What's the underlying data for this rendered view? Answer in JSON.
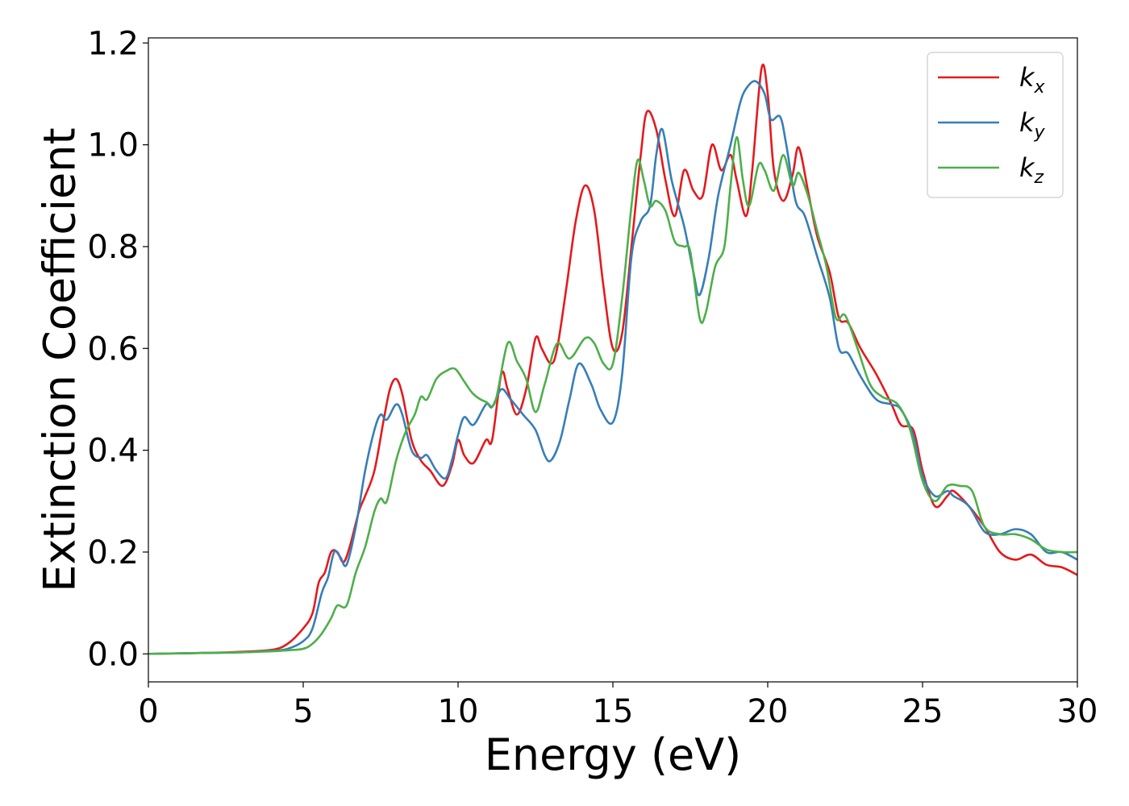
{
  "chart_data": {
    "type": "line",
    "xlabel": "Energy (eV)",
    "ylabel": "Extinction Coefficient",
    "xlim": [
      0,
      30
    ],
    "ylim": [
      -0.055,
      1.21
    ],
    "xticks": [
      0,
      5,
      10,
      15,
      20,
      25,
      30
    ],
    "xtick_labels": [
      "0",
      "5",
      "10",
      "15",
      "20",
      "25",
      "30"
    ],
    "yticks": [
      0.0,
      0.2,
      0.4,
      0.6,
      0.8,
      1.0,
      1.2
    ],
    "ytick_labels": [
      "0.0",
      "0.2",
      "0.4",
      "0.6",
      "0.8",
      "1.0",
      "1.2"
    ],
    "grid": false,
    "legend_position": "top-right",
    "series": [
      {
        "name": "k_x",
        "label_main": "k",
        "label_sub": "x",
        "color": "#e41a1c",
        "points": [
          [
            0,
            0
          ],
          [
            2,
            0.002
          ],
          [
            3,
            0.004
          ],
          [
            4,
            0.008
          ],
          [
            4.5,
            0.02
          ],
          [
            5,
            0.05
          ],
          [
            5.3,
            0.08
          ],
          [
            5.5,
            0.14
          ],
          [
            5.7,
            0.16
          ],
          [
            5.9,
            0.2
          ],
          [
            6.1,
            0.2
          ],
          [
            6.3,
            0.18
          ],
          [
            6.5,
            0.21
          ],
          [
            6.8,
            0.28
          ],
          [
            7,
            0.31
          ],
          [
            7.3,
            0.36
          ],
          [
            7.6,
            0.46
          ],
          [
            7.8,
            0.52
          ],
          [
            8,
            0.54
          ],
          [
            8.2,
            0.51
          ],
          [
            8.5,
            0.42
          ],
          [
            8.8,
            0.38
          ],
          [
            9.1,
            0.36
          ],
          [
            9.5,
            0.33
          ],
          [
            9.8,
            0.37
          ],
          [
            10,
            0.42
          ],
          [
            10.2,
            0.39
          ],
          [
            10.5,
            0.375
          ],
          [
            10.9,
            0.42
          ],
          [
            11.1,
            0.42
          ],
          [
            11.4,
            0.55
          ],
          [
            11.6,
            0.52
          ],
          [
            11.9,
            0.47
          ],
          [
            12.2,
            0.52
          ],
          [
            12.5,
            0.62
          ],
          [
            12.7,
            0.6
          ],
          [
            13,
            0.57
          ],
          [
            13.2,
            0.6
          ],
          [
            13.5,
            0.72
          ],
          [
            13.8,
            0.85
          ],
          [
            14.1,
            0.92
          ],
          [
            14.4,
            0.87
          ],
          [
            14.7,
            0.72
          ],
          [
            15,
            0.6
          ],
          [
            15.3,
            0.63
          ],
          [
            15.6,
            0.8
          ],
          [
            15.9,
            0.98
          ],
          [
            16.1,
            1.065
          ],
          [
            16.4,
            1.03
          ],
          [
            16.7,
            0.93
          ],
          [
            17,
            0.86
          ],
          [
            17.3,
            0.95
          ],
          [
            17.6,
            0.91
          ],
          [
            17.9,
            0.9
          ],
          [
            18.2,
            1.0
          ],
          [
            18.5,
            0.95
          ],
          [
            18.8,
            0.98
          ],
          [
            19.0,
            0.93
          ],
          [
            19.3,
            0.86
          ],
          [
            19.5,
            0.95
          ],
          [
            19.8,
            1.15
          ],
          [
            20.0,
            1.1
          ],
          [
            20.2,
            0.95
          ],
          [
            20.5,
            0.89
          ],
          [
            20.8,
            0.94
          ],
          [
            21.0,
            0.995
          ],
          [
            21.3,
            0.91
          ],
          [
            21.6,
            0.82
          ],
          [
            22.0,
            0.75
          ],
          [
            22.3,
            0.66
          ],
          [
            22.6,
            0.65
          ],
          [
            23,
            0.6
          ],
          [
            23.5,
            0.55
          ],
          [
            24,
            0.49
          ],
          [
            24.3,
            0.45
          ],
          [
            24.7,
            0.44
          ],
          [
            25,
            0.36
          ],
          [
            25.4,
            0.29
          ],
          [
            25.8,
            0.31
          ],
          [
            26,
            0.32
          ],
          [
            26.5,
            0.29
          ],
          [
            27,
            0.25
          ],
          [
            27.5,
            0.2
          ],
          [
            28,
            0.185
          ],
          [
            28.5,
            0.195
          ],
          [
            29,
            0.175
          ],
          [
            29.5,
            0.17
          ],
          [
            30,
            0.155
          ]
        ]
      },
      {
        "name": "k_y",
        "label_main": "k",
        "label_sub": "y",
        "color": "#377eb8",
        "points": [
          [
            0,
            0
          ],
          [
            2,
            0.002
          ],
          [
            3,
            0.003
          ],
          [
            4,
            0.006
          ],
          [
            4.5,
            0.01
          ],
          [
            5,
            0.025
          ],
          [
            5.3,
            0.05
          ],
          [
            5.6,
            0.12
          ],
          [
            5.8,
            0.15
          ],
          [
            6,
            0.2
          ],
          [
            6.2,
            0.19
          ],
          [
            6.4,
            0.175
          ],
          [
            6.7,
            0.25
          ],
          [
            7,
            0.36
          ],
          [
            7.3,
            0.44
          ],
          [
            7.5,
            0.47
          ],
          [
            7.7,
            0.46
          ],
          [
            8,
            0.49
          ],
          [
            8.2,
            0.47
          ],
          [
            8.5,
            0.4
          ],
          [
            8.8,
            0.385
          ],
          [
            9,
            0.39
          ],
          [
            9.3,
            0.36
          ],
          [
            9.6,
            0.345
          ],
          [
            9.8,
            0.38
          ],
          [
            10,
            0.43
          ],
          [
            10.2,
            0.465
          ],
          [
            10.5,
            0.45
          ],
          [
            10.9,
            0.49
          ],
          [
            11.1,
            0.485
          ],
          [
            11.4,
            0.52
          ],
          [
            11.7,
            0.5
          ],
          [
            12.1,
            0.47
          ],
          [
            12.5,
            0.44
          ],
          [
            12.8,
            0.39
          ],
          [
            13,
            0.38
          ],
          [
            13.3,
            0.42
          ],
          [
            13.6,
            0.5
          ],
          [
            13.9,
            0.57
          ],
          [
            14.3,
            0.53
          ],
          [
            14.6,
            0.48
          ],
          [
            15,
            0.455
          ],
          [
            15.3,
            0.55
          ],
          [
            15.6,
            0.78
          ],
          [
            15.9,
            0.85
          ],
          [
            16.2,
            0.88
          ],
          [
            16.4,
            0.98
          ],
          [
            16.6,
            1.03
          ],
          [
            16.9,
            0.93
          ],
          [
            17.3,
            0.84
          ],
          [
            17.6,
            0.75
          ],
          [
            17.8,
            0.705
          ],
          [
            18.1,
            0.78
          ],
          [
            18.4,
            0.9
          ],
          [
            18.8,
            1.0
          ],
          [
            19.1,
            1.08
          ],
          [
            19.3,
            1.11
          ],
          [
            19.6,
            1.125
          ],
          [
            19.9,
            1.1
          ],
          [
            20.1,
            1.05
          ],
          [
            20.4,
            1.055
          ],
          [
            20.6,
            1.0
          ],
          [
            20.9,
            0.89
          ],
          [
            21.2,
            0.86
          ],
          [
            21.6,
            0.78
          ],
          [
            22.0,
            0.7
          ],
          [
            22.3,
            0.6
          ],
          [
            22.6,
            0.59
          ],
          [
            23,
            0.545
          ],
          [
            23.5,
            0.5
          ],
          [
            24,
            0.49
          ],
          [
            24.3,
            0.48
          ],
          [
            24.7,
            0.43
          ],
          [
            25.0,
            0.35
          ],
          [
            25.4,
            0.31
          ],
          [
            25.8,
            0.32
          ],
          [
            26,
            0.31
          ],
          [
            26.5,
            0.29
          ],
          [
            27,
            0.24
          ],
          [
            27.5,
            0.235
          ],
          [
            28,
            0.245
          ],
          [
            28.5,
            0.235
          ],
          [
            29,
            0.2
          ],
          [
            29.5,
            0.2
          ],
          [
            30,
            0.185
          ]
        ]
      },
      {
        "name": "k_z",
        "label_main": "k",
        "label_sub": "z",
        "color": "#4daf4a",
        "points": [
          [
            0,
            0
          ],
          [
            2,
            0.002
          ],
          [
            3,
            0.003
          ],
          [
            4,
            0.005
          ],
          [
            4.5,
            0.007
          ],
          [
            5,
            0.01
          ],
          [
            5.3,
            0.02
          ],
          [
            5.6,
            0.04
          ],
          [
            5.9,
            0.07
          ],
          [
            6.1,
            0.095
          ],
          [
            6.4,
            0.095
          ],
          [
            6.7,
            0.16
          ],
          [
            7,
            0.21
          ],
          [
            7.3,
            0.28
          ],
          [
            7.5,
            0.305
          ],
          [
            7.7,
            0.3
          ],
          [
            8.0,
            0.38
          ],
          [
            8.3,
            0.435
          ],
          [
            8.6,
            0.47
          ],
          [
            8.8,
            0.505
          ],
          [
            9.0,
            0.5
          ],
          [
            9.3,
            0.54
          ],
          [
            9.6,
            0.555
          ],
          [
            9.9,
            0.56
          ],
          [
            10.2,
            0.535
          ],
          [
            10.5,
            0.51
          ],
          [
            10.9,
            0.495
          ],
          [
            11.2,
            0.495
          ],
          [
            11.6,
            0.61
          ],
          [
            11.9,
            0.575
          ],
          [
            12.2,
            0.54
          ],
          [
            12.5,
            0.475
          ],
          [
            12.8,
            0.53
          ],
          [
            13.2,
            0.61
          ],
          [
            13.6,
            0.58
          ],
          [
            14.1,
            0.62
          ],
          [
            14.4,
            0.61
          ],
          [
            14.7,
            0.57
          ],
          [
            15.0,
            0.57
          ],
          [
            15.3,
            0.7
          ],
          [
            15.6,
            0.88
          ],
          [
            15.8,
            0.97
          ],
          [
            16.0,
            0.93
          ],
          [
            16.2,
            0.88
          ],
          [
            16.4,
            0.89
          ],
          [
            16.7,
            0.87
          ],
          [
            17,
            0.81
          ],
          [
            17.3,
            0.8
          ],
          [
            17.5,
            0.79
          ],
          [
            17.8,
            0.66
          ],
          [
            18.0,
            0.67
          ],
          [
            18.3,
            0.76
          ],
          [
            18.6,
            0.8
          ],
          [
            18.8,
            0.92
          ],
          [
            19.0,
            1.015
          ],
          [
            19.2,
            0.93
          ],
          [
            19.4,
            0.88
          ],
          [
            19.7,
            0.96
          ],
          [
            19.9,
            0.95
          ],
          [
            20.2,
            0.91
          ],
          [
            20.5,
            0.98
          ],
          [
            20.8,
            0.92
          ],
          [
            21.0,
            0.945
          ],
          [
            21.3,
            0.9
          ],
          [
            21.6,
            0.83
          ],
          [
            21.9,
            0.76
          ],
          [
            22.2,
            0.66
          ],
          [
            22.5,
            0.665
          ],
          [
            22.9,
            0.6
          ],
          [
            23.3,
            0.53
          ],
          [
            23.7,
            0.505
          ],
          [
            24.2,
            0.49
          ],
          [
            24.6,
            0.44
          ],
          [
            25.0,
            0.34
          ],
          [
            25.4,
            0.3
          ],
          [
            25.8,
            0.33
          ],
          [
            26.2,
            0.33
          ],
          [
            26.6,
            0.32
          ],
          [
            27,
            0.25
          ],
          [
            27.5,
            0.235
          ],
          [
            28,
            0.235
          ],
          [
            28.5,
            0.225
          ],
          [
            29,
            0.205
          ],
          [
            29.5,
            0.2
          ],
          [
            30,
            0.2
          ]
        ]
      }
    ]
  }
}
